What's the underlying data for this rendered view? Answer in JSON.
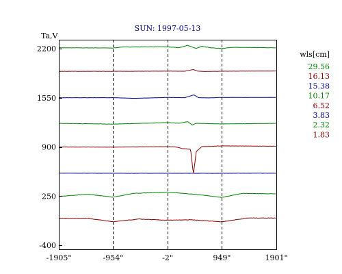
{
  "chart_data": {
    "type": "line",
    "title": "SUN: 1997-05-13",
    "ylabel": "Ta,V",
    "xlabel": "",
    "xlim": [
      -1905,
      1901
    ],
    "ylim": [
      -455,
      2320
    ],
    "x_ticks": [
      {
        "value": -1905,
        "label": "-1905\""
      },
      {
        "value": -954,
        "label": "-954\""
      },
      {
        "value": -2,
        "label": "-2\""
      },
      {
        "value": 949,
        "label": "949\""
      },
      {
        "value": 1901,
        "label": "1901\""
      }
    ],
    "y_ticks": [
      {
        "value": 2200,
        "label": "2200"
      },
      {
        "value": 1550,
        "label": "1550"
      },
      {
        "value": 900,
        "label": "900"
      },
      {
        "value": 250,
        "label": "250"
      },
      {
        "value": -400,
        "label": "-400"
      }
    ],
    "v_lines": [
      -954,
      -2,
      949
    ],
    "legend": {
      "title": "wls[cm]",
      "position": "right",
      "entries": [
        "29.56",
        "16.13",
        "15.38",
        "10.17",
        "6.52",
        "3.83",
        "2.32",
        "1.83"
      ]
    },
    "series": [
      {
        "name": "29.56",
        "color": "#008000",
        "baseline": 2213,
        "noise": 4,
        "x": [
          -1905,
          -1200,
          -954,
          -800,
          -2,
          200,
          350,
          500,
          600,
          750,
          949,
          1100,
          1901
        ],
        "values": [
          2213,
          2212,
          2210,
          2224,
          2226,
          2214,
          2246,
          2204,
          2234,
          2214,
          2203,
          2219,
          2213
        ]
      },
      {
        "name": "16.13",
        "color": "#800000",
        "baseline": 1902,
        "noise": 2,
        "x": [
          -1905,
          -954,
          -2,
          300,
          450,
          520,
          650,
          949,
          1901
        ],
        "values": [
          1902,
          1902,
          1904,
          1903,
          1926,
          1905,
          1900,
          1903,
          1906
        ]
      },
      {
        "name": "15.38",
        "color": "#000080",
        "baseline": 1553,
        "noise": 2,
        "x": [
          -1905,
          -954,
          -600,
          -2,
          300,
          460,
          540,
          700,
          949,
          1901
        ],
        "values": [
          1552,
          1553,
          1544,
          1556,
          1553,
          1590,
          1553,
          1550,
          1556,
          1556
        ]
      },
      {
        "name": "10.17",
        "color": "#008000",
        "baseline": 1212,
        "noise": 3,
        "x": [
          -1905,
          -954,
          -2,
          200,
          350,
          430,
          500,
          949,
          1901
        ],
        "values": [
          1213,
          1203,
          1223,
          1214,
          1236,
          1192,
          1214,
          1205,
          1213
        ]
      },
      {
        "name": "6.52",
        "color": "#800000",
        "baseline": 902,
        "noise": 3,
        "x": [
          -1905,
          -954,
          -2,
          150,
          250,
          400,
          450,
          500,
          600,
          949,
          1901
        ],
        "values": [
          900,
          898,
          905,
          900,
          880,
          870,
          540,
          840,
          905,
          915,
          910
        ]
      },
      {
        "name": "3.83",
        "color": "#000080",
        "baseline": 552,
        "noise": 2,
        "x": [
          -1905,
          -954,
          -2,
          949,
          1901
        ],
        "values": [
          553,
          552,
          552,
          552,
          553
        ]
      },
      {
        "name": "2.32",
        "color": "#008000",
        "baseline": 254,
        "noise": 4,
        "x": [
          -1905,
          -1400,
          -954,
          -600,
          -2,
          300,
          600,
          949,
          1300,
          1901
        ],
        "values": [
          246,
          274,
          236,
          286,
          303,
          284,
          264,
          232,
          286,
          280
        ]
      },
      {
        "name": "1.83",
        "color": "#800000",
        "baseline": -44,
        "noise": 6,
        "x": [
          -1905,
          -1400,
          -954,
          -500,
          -2,
          400,
          949,
          1400,
          1901
        ],
        "values": [
          -44,
          -44,
          -90,
          -54,
          -70,
          -64,
          -90,
          -40,
          -40
        ]
      }
    ]
  }
}
